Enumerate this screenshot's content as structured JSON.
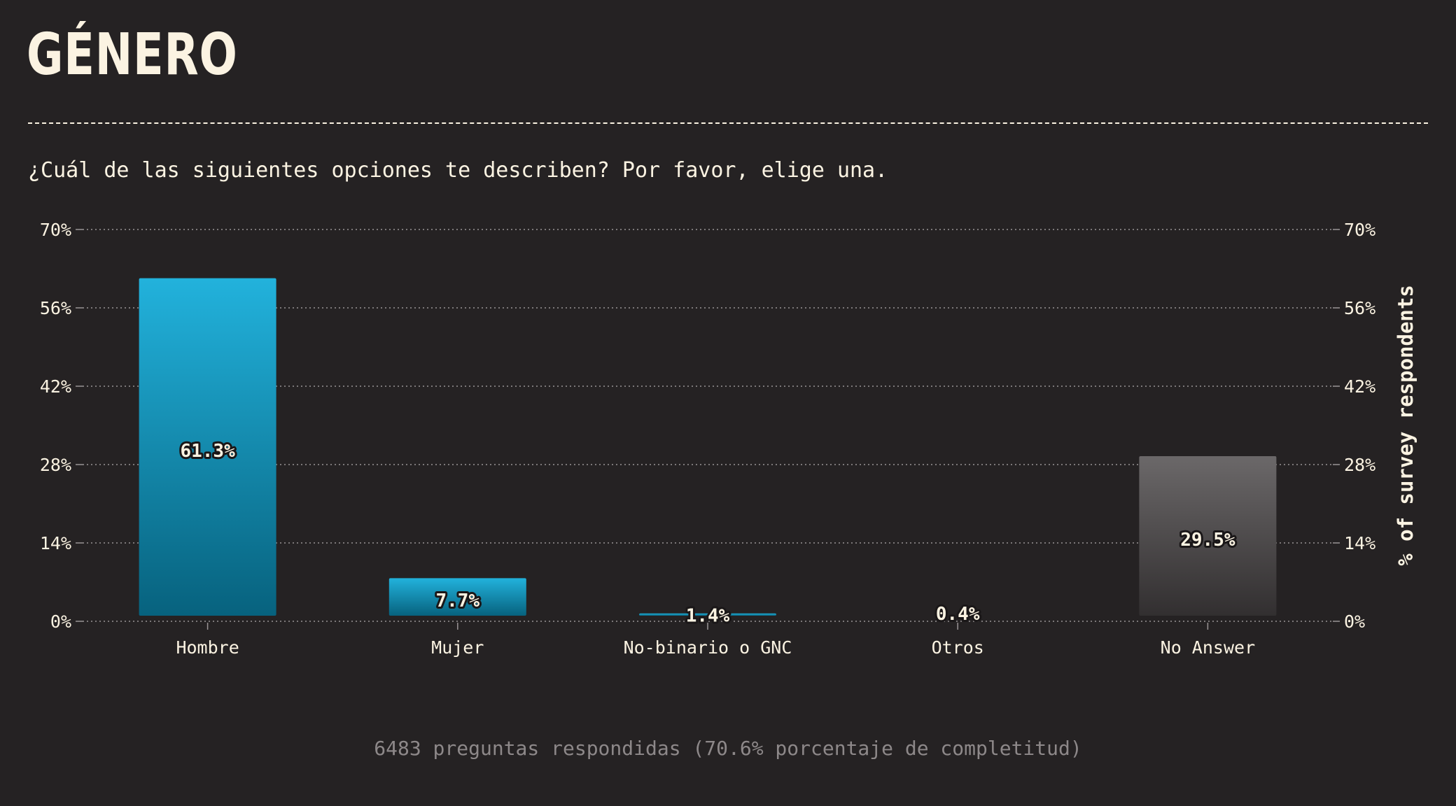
{
  "header": {
    "title": "GÉNERO",
    "question": "¿Cuál de las siguientes opciones te describen? Por favor, elige una."
  },
  "footer": {
    "note": "6483 preguntas respondidas (70.6% porcentaje de completitud)"
  },
  "colors": {
    "background": "#252223",
    "text": "#fbf3e2",
    "bar_top": "#22b2dc",
    "bar_bottom": "#07627e",
    "no_answer_top": "#6b6869",
    "no_answer_bottom": "#322f30",
    "footer": "#8d8889"
  },
  "chart_data": {
    "type": "bar",
    "categories": [
      "Hombre",
      "Mujer",
      "No-binario o GNC",
      "Otros",
      "No Answer"
    ],
    "values": [
      61.3,
      7.7,
      1.4,
      0.4,
      29.5
    ],
    "value_labels": [
      "61.3%",
      "7.7%",
      "1.4%",
      "0.4%",
      "29.5%"
    ],
    "highlight": [
      false,
      false,
      false,
      false,
      true
    ],
    "ylim": [
      0,
      70
    ],
    "yticks": [
      0,
      14,
      28,
      42,
      56,
      70
    ],
    "ytick_labels": [
      "0%",
      "14%",
      "28%",
      "42%",
      "56%",
      "70%"
    ],
    "ylabel_right": "% of survey respondents",
    "grid": true
  }
}
